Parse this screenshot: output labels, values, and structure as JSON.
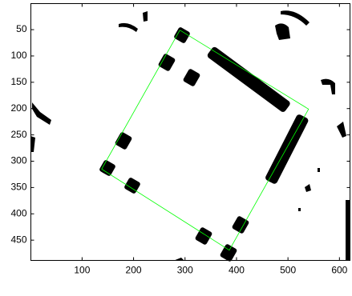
{
  "chart_data": {
    "type": "image",
    "xlim": [
      0.5,
      620.5
    ],
    "ylim": [
      0.5,
      488.5
    ],
    "y_reversed": true,
    "xticks": [
      100,
      200,
      300,
      400,
      500,
      600
    ],
    "yticks": [
      50,
      100,
      150,
      200,
      250,
      300,
      350,
      400,
      450
    ],
    "series": [
      {
        "color": "#00ff00",
        "x": [
          290,
          540,
          386,
          138,
          290
        ],
        "values": [
          51,
          201,
          469,
          315,
          51
        ]
      }
    ]
  }
}
